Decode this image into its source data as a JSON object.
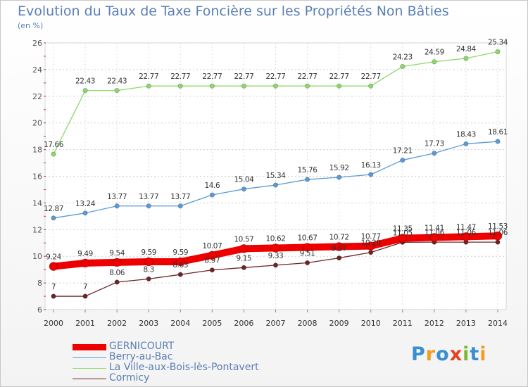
{
  "title": "Evolution du Taux de Taxe Foncière sur les Propriétés Non Bâties",
  "subtitle": "(en %)",
  "logo": {
    "text": "Proxiti",
    "icon": "proxiti-logo"
  },
  "colors": {
    "gernicourt": "#ee0000",
    "berry": "#5b9bd5",
    "ville": "#8cd96a",
    "cormicy": "#6e2424"
  },
  "chart_data": {
    "type": "line",
    "title": "Evolution du Taux de Taxe Foncière sur les Propriétés Non Bâties",
    "ylabel": "(en %)",
    "xlabel": "",
    "x": [
      "2000",
      "2001",
      "2002",
      "2003",
      "2004",
      "2005",
      "2006",
      "2007",
      "2008",
      "2009",
      "2010",
      "2011",
      "2012",
      "2013",
      "2014"
    ],
    "ylim": [
      6,
      26
    ],
    "yticks": [
      6,
      8,
      10,
      12,
      14,
      16,
      18,
      20,
      22,
      24,
      26
    ],
    "grid": true,
    "legend_position": "bottom-left",
    "series": [
      {
        "name": "GERNICOURT",
        "key": "gernicourt",
        "values": [
          9.24,
          9.49,
          9.54,
          9.59,
          9.59,
          10.07,
          10.57,
          10.62,
          10.67,
          10.72,
          10.77,
          11.35,
          11.41,
          11.47,
          11.53
        ],
        "labels": [
          "9.24",
          "9.49",
          "9.54",
          "9.59",
          "9.59",
          "10.07",
          "10.57",
          "10.62",
          "10.67",
          "10.72",
          "10.77",
          "11.35",
          "11.41",
          "11.47",
          "11.53"
        ]
      },
      {
        "name": "Berry-au-Bac",
        "key": "berry",
        "values": [
          12.87,
          13.24,
          13.77,
          13.77,
          13.77,
          14.6,
          15.04,
          15.34,
          15.76,
          15.92,
          16.13,
          17.21,
          17.73,
          18.43,
          18.61
        ],
        "labels": [
          "12.87",
          "13.24",
          "13.77",
          "13.77",
          "13.77",
          "14.6",
          "15.04",
          "15.34",
          "15.76",
          "15.92",
          "16.13",
          "17.21",
          "17.73",
          "18.43",
          "18.61"
        ]
      },
      {
        "name": "La Ville-aux-Bois-lès-Pontavert",
        "key": "ville",
        "values": [
          17.66,
          22.43,
          22.43,
          22.77,
          22.77,
          22.77,
          22.77,
          22.77,
          22.77,
          22.77,
          22.77,
          24.23,
          24.59,
          24.84,
          25.34
        ],
        "labels": [
          "17.66",
          "22.43",
          "22.43",
          "22.77",
          "22.77",
          "22.77",
          "22.77",
          "22.77",
          "22.77",
          "22.77",
          "22.77",
          "24.23",
          "24.59",
          "24.84",
          "25.34"
        ]
      },
      {
        "name": "Cormicy",
        "key": "cormicy",
        "values": [
          7,
          7,
          8.06,
          8.3,
          8.63,
          8.97,
          9.15,
          9.33,
          9.51,
          9.87,
          10.29,
          11.05,
          11.06,
          11.06,
          11.06
        ],
        "labels": [
          "7",
          "7",
          "8.06",
          "8.3",
          "8.63",
          "8.97",
          "9.15",
          "9.33",
          "9.51",
          "9.87",
          "10.29",
          "11.05",
          "11.06",
          "11.06",
          "11.06"
        ]
      }
    ]
  }
}
